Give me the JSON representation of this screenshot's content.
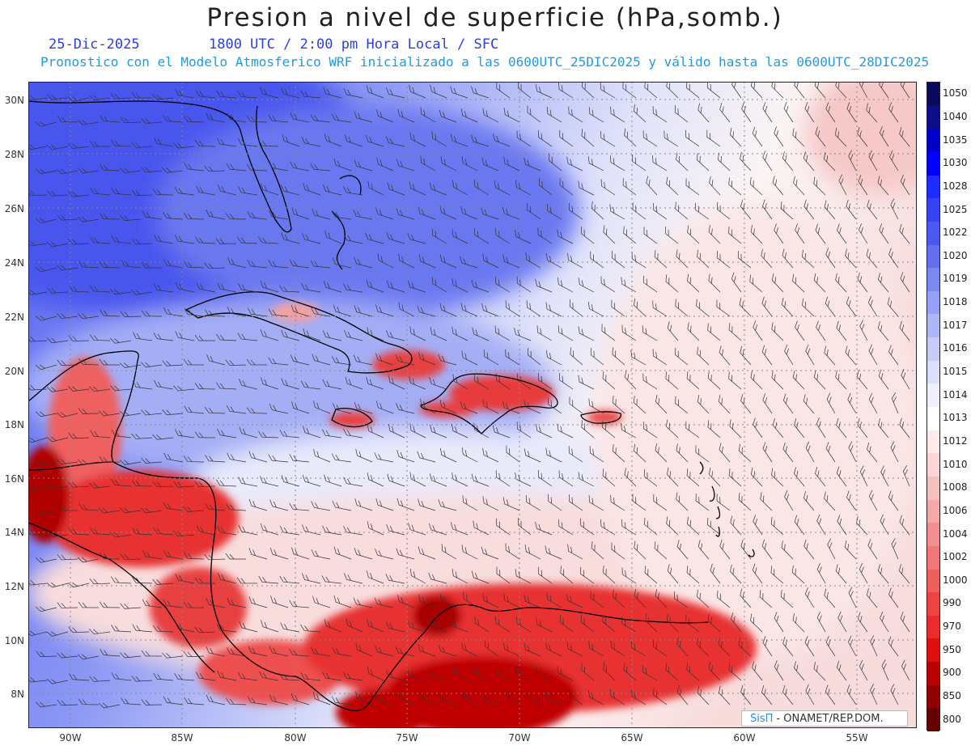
{
  "header": {
    "title": "Presion a nivel de superficie (hPa,somb.)",
    "date": "25-Dic-2025",
    "valid_time": "1800 UTC / 2:00 pm Hora Local / SFC",
    "model_info": "Pronostico con el Modelo Atmosferico WRF inicializado a las 0600UTC_25DIC2025 y válido hasta las  0600UTC_28DIC2025"
  },
  "map": {
    "lat_labels": [
      "30N",
      "28N",
      "26N",
      "24N",
      "22N",
      "20N",
      "18N",
      "16N",
      "14N",
      "12N",
      "10N",
      "8N"
    ],
    "lon_labels": [
      "90W",
      "85W",
      "80W",
      "75W",
      "70W",
      "65W",
      "60W",
      "55W"
    ]
  },
  "colorbar": {
    "levels": [
      "1050",
      "1040",
      "1035",
      "1030",
      "1028",
      "1025",
      "1022",
      "1020",
      "1019",
      "1018",
      "1017",
      "1016",
      "1015",
      "1014",
      "1013",
      "1012",
      "1010",
      "1008",
      "1006",
      "1004",
      "1002",
      "1000",
      "990",
      "970",
      "950",
      "900",
      "850",
      "800"
    ],
    "colors": [
      "#0a0a5a",
      "#0d0d8c",
      "#0000c8",
      "#0000ff",
      "#1e2cff",
      "#3444f2",
      "#4a5af0",
      "#6270f0",
      "#7c88f2",
      "#96a0f4",
      "#aeb6f6",
      "#c6ccf8",
      "#dde0fa",
      "#f0f0fc",
      "#ffffff",
      "#fdeaea",
      "#fad6d6",
      "#f7c0c0",
      "#f4a8a8",
      "#f29090",
      "#f07878",
      "#ee6060",
      "#ec4444",
      "#ea2c2c",
      "#e01010",
      "#b80000",
      "#900000",
      "#640000"
    ]
  },
  "credit": {
    "brand": "SisΠ",
    "text": "- ONAMET/REP.DOM."
  }
}
